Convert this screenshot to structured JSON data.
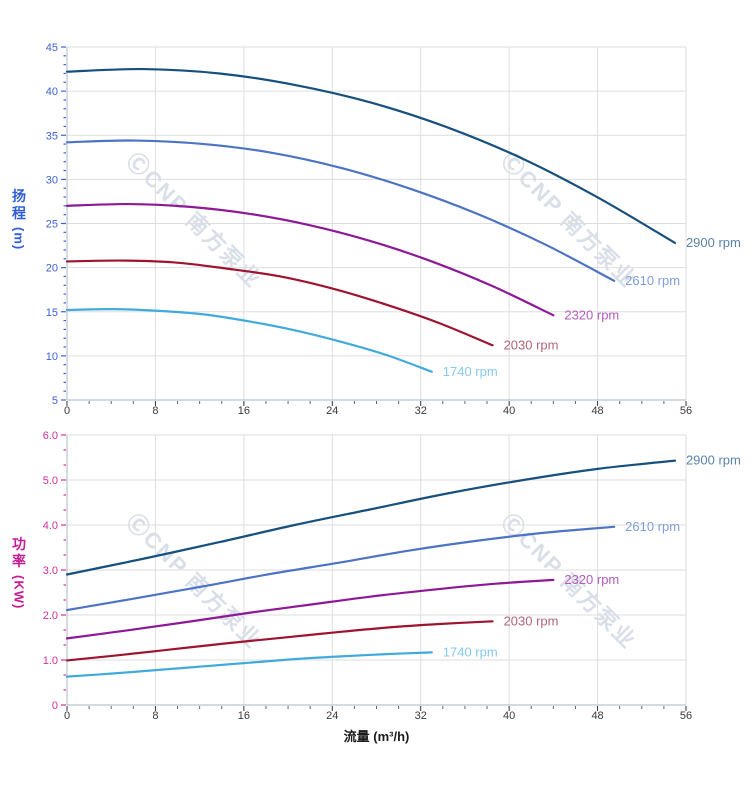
{
  "watermark": {
    "text": "ⒸCNP 南方泵业",
    "color": "#b9c6d6"
  },
  "head_axis": {
    "char1": "扬",
    "char2": "程",
    "unit": "(m)",
    "color": "#2f5fd8"
  },
  "power_axis": {
    "char1": "功",
    "char2": "率",
    "unit": "(KW)",
    "color": "#c71d92"
  },
  "x_axis_title": "流量 (m³/h)",
  "chart_data": [
    {
      "type": "line",
      "name": "head-vs-flow",
      "title": "",
      "xlabel": "流量 (m³/h)",
      "ylabel": "扬程(m)",
      "xlim": [
        0,
        56
      ],
      "ylim": [
        5,
        45
      ],
      "x_tick_step": 8,
      "x_subdiv": 4,
      "y_tick_step": 5,
      "y_subdiv": 5,
      "x_tick_labels": [
        "0",
        "8",
        "16",
        "24",
        "32",
        "40",
        "48",
        "56"
      ],
      "y_tick_labels": [
        "5",
        "10",
        "15",
        "20",
        "25",
        "30",
        "35",
        "40",
        "45"
      ],
      "axis_color": "#3f62d6",
      "grid": true,
      "legend_position": "labels-at-curve-ends",
      "series": [
        {
          "name": "2900 rpm",
          "color": "#17507d",
          "label_color": "#5b82ab",
          "x": [
            0,
            6.9,
            13.8,
            20.6,
            27.5,
            34.4,
            41.3,
            48.1,
            55
          ],
          "y": [
            42.2,
            42.5,
            42.0,
            40.7,
            38.7,
            35.9,
            32.3,
            27.9,
            22.8
          ]
        },
        {
          "name": "2610 rpm",
          "color": "#4d74c4",
          "label_color": "#7f9ed9",
          "x": [
            0,
            6.2,
            12.4,
            18.6,
            24.8,
            30.9,
            37.1,
            43.3,
            49.5
          ],
          "y": [
            34.2,
            34.4,
            34.0,
            33.0,
            31.3,
            29.0,
            26.1,
            22.6,
            18.5
          ]
        },
        {
          "name": "2320 rpm",
          "color": "#8e1996",
          "label_color": "#b35cbd",
          "x": [
            0,
            5.5,
            11,
            16.5,
            22,
            27.5,
            33,
            38.5,
            44
          ],
          "y": [
            27.0,
            27.2,
            26.9,
            26.1,
            24.8,
            23.0,
            20.7,
            17.9,
            14.6
          ]
        },
        {
          "name": "2030 rpm",
          "color": "#9e1430",
          "label_color": "#b26476",
          "x": [
            0,
            4.8,
            9.6,
            14.4,
            19.3,
            24.1,
            28.9,
            33.7,
            38.5
          ],
          "y": [
            20.7,
            20.8,
            20.6,
            19.9,
            19.0,
            17.6,
            15.8,
            13.7,
            11.2
          ]
        },
        {
          "name": "1740 rpm",
          "color": "#41aadc",
          "label_color": "#85c9ee",
          "x": [
            0,
            4.1,
            8.3,
            12.4,
            16.5,
            20.6,
            24.8,
            28.9,
            33
          ],
          "y": [
            15.2,
            15.3,
            15.1,
            14.7,
            13.9,
            12.9,
            11.6,
            10.1,
            8.2
          ]
        }
      ]
    },
    {
      "type": "line",
      "name": "power-vs-flow",
      "title": "",
      "xlabel": "流量 (m³/h)",
      "ylabel": "功率(KW)",
      "xlim": [
        0,
        56
      ],
      "ylim": [
        0,
        6
      ],
      "x_tick_step": 8,
      "x_subdiv": 4,
      "y_tick_step": 1,
      "y_subdiv": 3,
      "x_tick_labels": [
        "0",
        "8",
        "16",
        "24",
        "32",
        "40",
        "48",
        "56"
      ],
      "y_tick_labels": [
        "0",
        "1.0",
        "2.0",
        "3.0",
        "4.0",
        "5.0",
        "6.0"
      ],
      "axis_color": "#d12f9c",
      "grid": true,
      "legend_position": "labels-at-curve-ends",
      "series": [
        {
          "name": "2900 rpm",
          "color": "#17507d",
          "label_color": "#5b82ab",
          "x": [
            0,
            6.9,
            13.8,
            20.6,
            27.5,
            34.4,
            41.3,
            48.1,
            55
          ],
          "y": [
            2.9,
            3.25,
            3.62,
            4.0,
            4.35,
            4.7,
            5.0,
            5.25,
            5.43
          ]
        },
        {
          "name": "2610 rpm",
          "color": "#4d74c4",
          "label_color": "#7f9ed9",
          "x": [
            0,
            6.2,
            12.4,
            18.6,
            24.8,
            30.9,
            37.1,
            43.3,
            49.5
          ],
          "y": [
            2.11,
            2.37,
            2.64,
            2.92,
            3.17,
            3.43,
            3.65,
            3.83,
            3.96
          ]
        },
        {
          "name": "2320 rpm",
          "color": "#8e1996",
          "label_color": "#b35cbd",
          "x": [
            0,
            5.5,
            11,
            16.5,
            22,
            27.5,
            33,
            38.5,
            44
          ],
          "y": [
            1.48,
            1.66,
            1.85,
            2.05,
            2.23,
            2.41,
            2.56,
            2.69,
            2.78
          ]
        },
        {
          "name": "2030 rpm",
          "color": "#9e1430",
          "label_color": "#b26476",
          "x": [
            0,
            4.8,
            9.6,
            14.4,
            19.3,
            24.1,
            28.9,
            33.7,
            38.5
          ],
          "y": [
            0.99,
            1.11,
            1.24,
            1.37,
            1.49,
            1.61,
            1.72,
            1.8,
            1.86
          ]
        },
        {
          "name": "1740 rpm",
          "color": "#41aadc",
          "label_color": "#85c9ee",
          "x": [
            0,
            4.1,
            8.3,
            12.4,
            16.5,
            20.6,
            24.8,
            28.9,
            33
          ],
          "y": [
            0.63,
            0.7,
            0.78,
            0.86,
            0.94,
            1.02,
            1.08,
            1.13,
            1.17
          ]
        }
      ]
    }
  ]
}
